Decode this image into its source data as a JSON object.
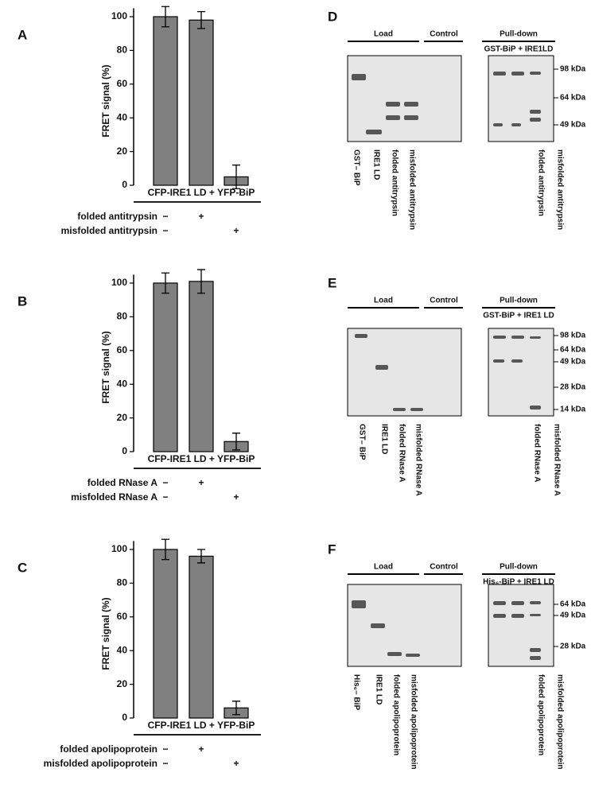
{
  "chart_data": [
    {
      "type": "bar",
      "panel": "A",
      "ylabel": "FRET signal  (%)",
      "xlabel": "CFP-IRE1 LD + YFP-BiP",
      "values": [
        100,
        98,
        5
      ],
      "errors": [
        6,
        5,
        7
      ],
      "color": "#808080",
      "ylim": [
        0,
        105
      ],
      "yticks": [
        0,
        20,
        40,
        60,
        80,
        100
      ],
      "conditions": [
        {
          "label": "folded antitrypsin",
          "marks": [
            "−",
            "+",
            null
          ]
        },
        {
          "label": "misfolded antitrypsin",
          "marks": [
            "−",
            null,
            "+"
          ]
        }
      ]
    },
    {
      "type": "bar",
      "panel": "B",
      "ylabel": "FRET signal  (%)",
      "xlabel": "CFP-IRE1 LD + YFP-BiP",
      "values": [
        100,
        101,
        6
      ],
      "errors": [
        6,
        7,
        5
      ],
      "color": "#808080",
      "ylim": [
        0,
        105
      ],
      "yticks": [
        0,
        20,
        40,
        60,
        80,
        100
      ],
      "conditions": [
        {
          "label": "folded RNase A",
          "marks": [
            "−",
            "+",
            null
          ]
        },
        {
          "label": "misfolded RNase A",
          "marks": [
            "−",
            null,
            "+"
          ]
        }
      ]
    },
    {
      "type": "bar",
      "panel": "C",
      "ylabel": "FRET signal  (%)",
      "xlabel": "CFP-IRE1 LD + YFP-BiP",
      "values": [
        100,
        96,
        6
      ],
      "errors": [
        6,
        4,
        4
      ],
      "color": "#808080",
      "ylim": [
        0,
        105
      ],
      "yticks": [
        0,
        20,
        40,
        60,
        80,
        100
      ],
      "conditions": [
        {
          "label": "folded apolipoprotein",
          "marks": [
            "−",
            "+",
            null
          ]
        },
        {
          "label": "misfolded apolipoprotein",
          "marks": [
            "−",
            null,
            "+"
          ]
        }
      ]
    }
  ],
  "gels": [
    {
      "panel": "D",
      "load": "Load",
      "control": "Control",
      "pulldown": "Pull-down",
      "pulldown_label": "GST-BiP + IRE1LD",
      "load_lanes": [
        "GST– BiP",
        "IRE1 LD",
        "folded antitrypsin",
        "misfolded antitrypsin"
      ],
      "pulldown_lanes": [
        "folded antitrypsin",
        "misfolded antitrypsin"
      ],
      "markers": [
        "98 kDa",
        "64 kDa",
        "49 kDa"
      ]
    },
    {
      "panel": "E",
      "load": "Load",
      "control": "Control",
      "pulldown": "Pull-down",
      "pulldown_label": "GST-BiP + IRE1 LD",
      "load_lanes": [
        "GST– BiP",
        "IRE1 LD",
        "folded RNase A",
        "misfolded RNase A"
      ],
      "pulldown_lanes": [
        "folded RNase A",
        "misfolded RNase A"
      ],
      "markers": [
        "98 kDa",
        "64 kDa",
        "49 kDa",
        "28 kDa",
        "14 kDa"
      ]
    },
    {
      "panel": "F",
      "load": "Load",
      "control": "Control",
      "pulldown": "Pull-down",
      "pulldown_label": "His₆-BiP + IRE1 LD",
      "load_lanes": [
        "His₆– BiP",
        "IRE1 LD",
        "folded apolipoprotein",
        "misfolded apolipoprotein"
      ],
      "pulldown_lanes": [
        "folded apolipoprotein",
        "misfolded apolipoprotein"
      ],
      "markers": [
        "64 kDa",
        "49 kDa",
        "28 kDa"
      ]
    }
  ]
}
